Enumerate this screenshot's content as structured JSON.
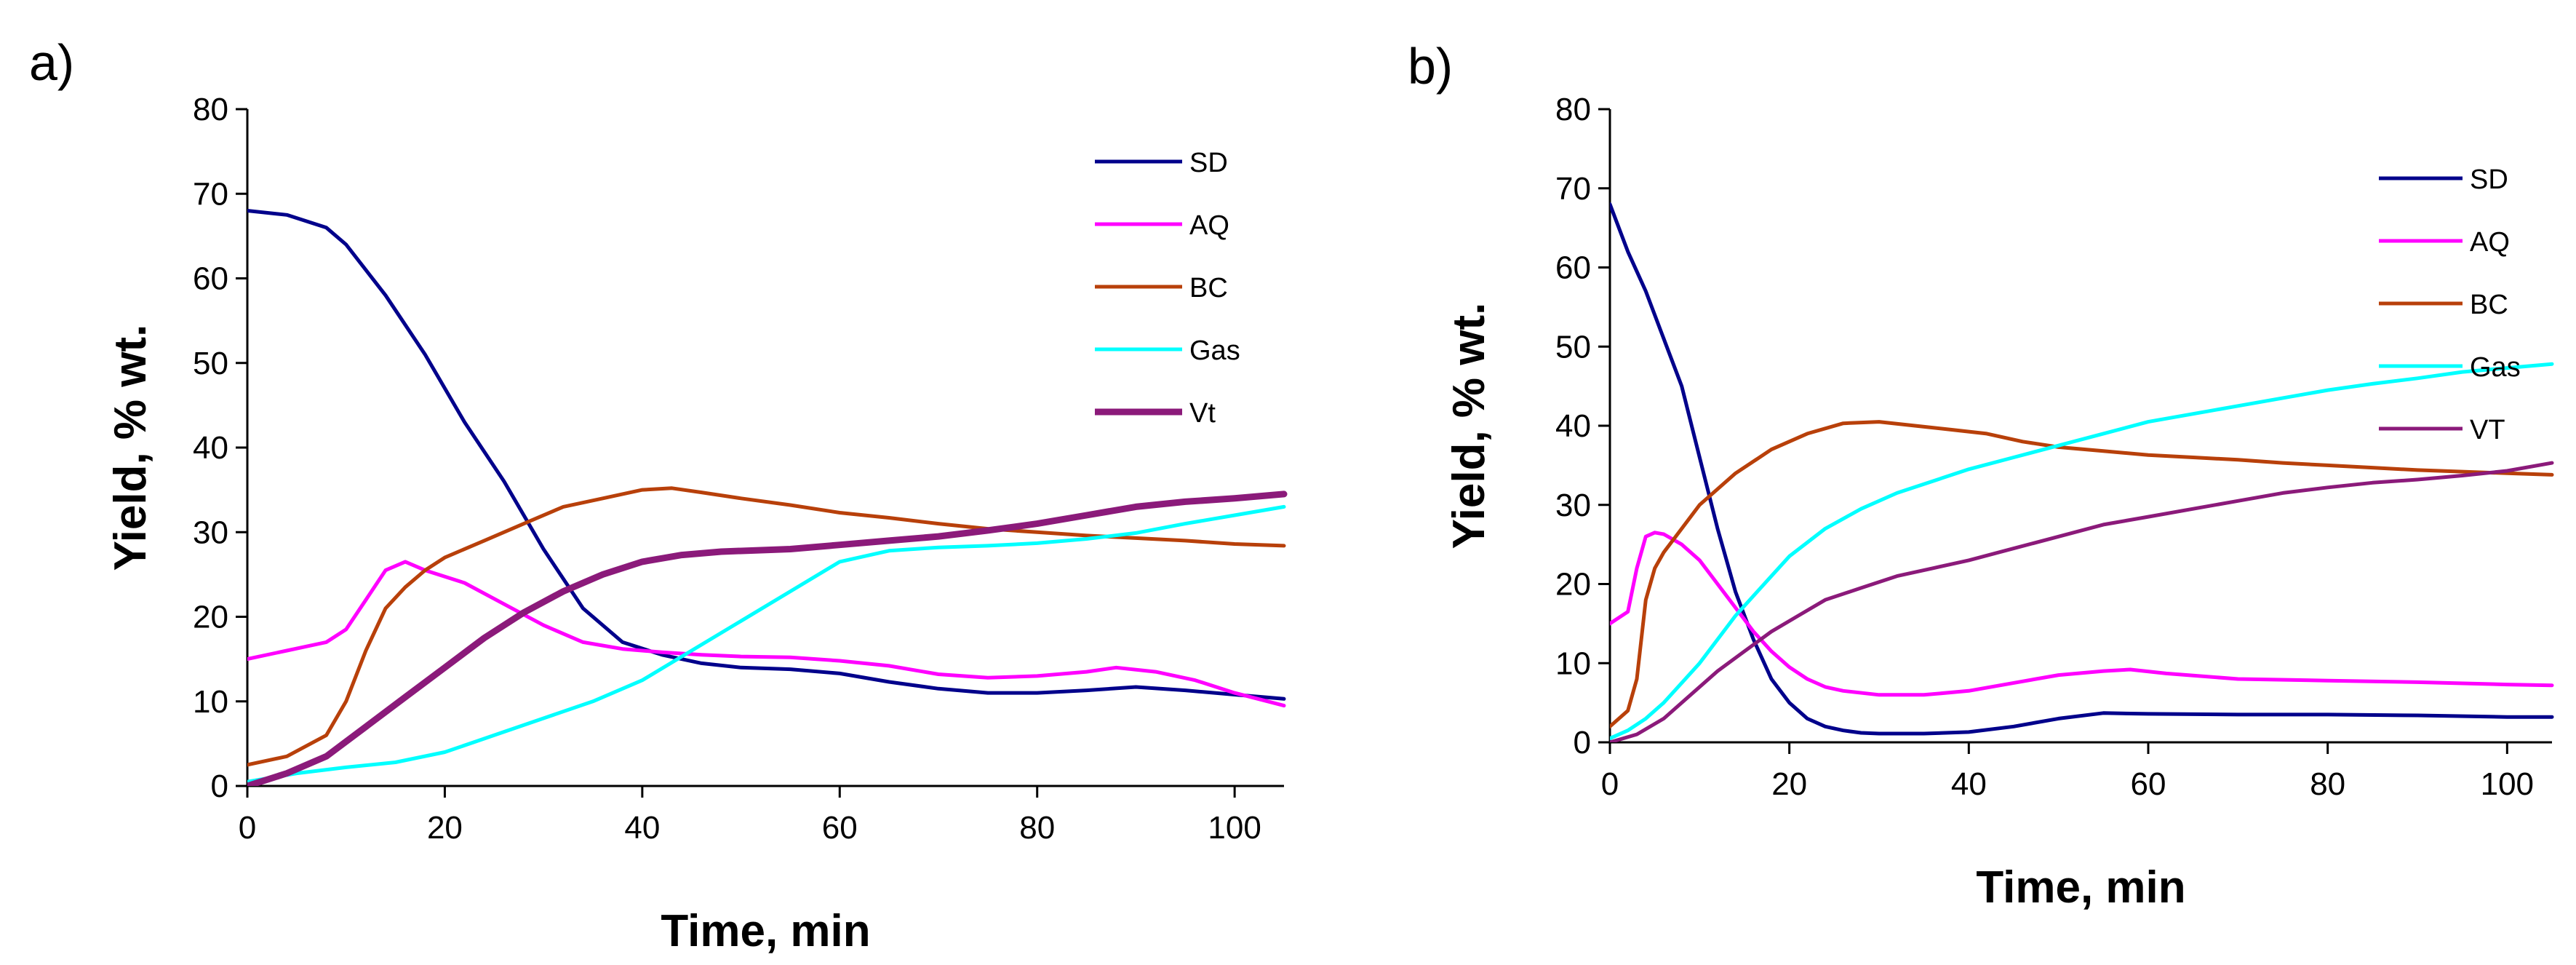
{
  "chart_data": [
    {
      "type": "line",
      "panel_label": "a)",
      "title": "",
      "xlabel": "Time, min",
      "ylabel": "Yield, % wt.",
      "xlim": [
        0,
        105
      ],
      "ylim": [
        0,
        80
      ],
      "xticks": [
        0,
        20,
        40,
        60,
        80,
        100
      ],
      "yticks": [
        0,
        10,
        20,
        30,
        40,
        50,
        60,
        70,
        80
      ],
      "grid": false,
      "legend_position": "top-right",
      "series": [
        {
          "name": "SD",
          "color": "#00008b",
          "width": "normal",
          "x": [
            0,
            4,
            8,
            10,
            14,
            18,
            22,
            26,
            30,
            34,
            38,
            42,
            46,
            50,
            55,
            60,
            65,
            70,
            75,
            80,
            85,
            90,
            95,
            100,
            105
          ],
          "y": [
            68,
            67.5,
            66,
            64,
            58,
            51,
            43,
            36,
            28,
            21,
            17,
            15.5,
            14.5,
            14,
            13.8,
            13.3,
            12.3,
            11.5,
            11,
            11,
            11.3,
            11.7,
            11.3,
            10.8,
            10.3
          ]
        },
        {
          "name": "AQ",
          "color": "#ff00ff",
          "width": "normal",
          "x": [
            0,
            4,
            8,
            10,
            12,
            14,
            16,
            18,
            22,
            26,
            30,
            34,
            38,
            42,
            46,
            50,
            55,
            60,
            65,
            70,
            75,
            80,
            85,
            88,
            92,
            96,
            100,
            105
          ],
          "y": [
            15,
            16,
            17,
            18.5,
            22,
            25.5,
            26.5,
            25.5,
            24,
            21.5,
            19,
            17,
            16.2,
            15.8,
            15.5,
            15.3,
            15.2,
            14.8,
            14.2,
            13.2,
            12.8,
            13,
            13.5,
            14,
            13.5,
            12.5,
            11,
            9.5
          ]
        },
        {
          "name": "BC",
          "color": "#b8400a",
          "width": "normal",
          "x": [
            0,
            4,
            8,
            10,
            12,
            14,
            16,
            18,
            20,
            24,
            28,
            32,
            36,
            40,
            43,
            46,
            50,
            55,
            60,
            65,
            70,
            75,
            80,
            85,
            90,
            95,
            100,
            105
          ],
          "y": [
            2.5,
            3.5,
            6,
            10,
            16,
            21,
            23.5,
            25.5,
            27,
            29,
            31,
            33,
            34,
            35,
            35.2,
            34.7,
            34,
            33.2,
            32.3,
            31.7,
            31,
            30.4,
            30,
            29.6,
            29.3,
            29,
            28.6,
            28.4
          ]
        },
        {
          "name": "Gas",
          "color": "#00ffff",
          "width": "normal",
          "x": [
            0,
            5,
            10,
            15,
            20,
            25,
            30,
            35,
            40,
            45,
            50,
            55,
            60,
            65,
            70,
            75,
            80,
            85,
            90,
            95,
            100,
            105
          ],
          "y": [
            0.5,
            1.5,
            2.2,
            2.8,
            4,
            6,
            8,
            10,
            12.5,
            16,
            19.5,
            23,
            26.5,
            27.8,
            28.2,
            28.4,
            28.7,
            29.2,
            29.9,
            31,
            32,
            33
          ]
        },
        {
          "name": "Vt",
          "color": "#8b1a7a",
          "width": "thick",
          "x": [
            0,
            4,
            8,
            12,
            16,
            20,
            24,
            28,
            32,
            36,
            40,
            44,
            48,
            55,
            60,
            65,
            70,
            75,
            80,
            85,
            90,
            95,
            100,
            105
          ],
          "y": [
            0,
            1.5,
            3.5,
            7,
            10.5,
            14,
            17.5,
            20.5,
            23,
            25,
            26.5,
            27.3,
            27.7,
            28,
            28.5,
            29,
            29.5,
            30.2,
            31,
            32,
            33,
            33.6,
            34,
            34.5
          ]
        }
      ]
    },
    {
      "type": "line",
      "panel_label": "b)",
      "title": "",
      "xlabel": "Time, min",
      "ylabel": "Yield, % wt.",
      "xlim": [
        0,
        105
      ],
      "ylim": [
        0,
        80
      ],
      "xticks": [
        0,
        20,
        40,
        60,
        80,
        100
      ],
      "yticks": [
        0,
        10,
        20,
        30,
        40,
        50,
        60,
        70,
        80
      ],
      "grid": false,
      "legend_position": "top-right",
      "series": [
        {
          "name": "SD",
          "color": "#00008b",
          "width": "normal",
          "x": [
            0,
            2,
            4,
            6,
            8,
            10,
            12,
            14,
            16,
            18,
            20,
            22,
            24,
            26,
            28,
            30,
            35,
            40,
            45,
            50,
            55,
            60,
            70,
            80,
            90,
            100,
            105
          ],
          "y": [
            68,
            62,
            57,
            51,
            45,
            36,
            27,
            19,
            13,
            8,
            5,
            3,
            2,
            1.5,
            1.2,
            1.1,
            1.1,
            1.3,
            2,
            3,
            3.7,
            3.6,
            3.5,
            3.5,
            3.4,
            3.2,
            3.2
          ]
        },
        {
          "name": "AQ",
          "color": "#ff00ff",
          "width": "normal",
          "x": [
            0,
            2,
            3,
            4,
            5,
            6,
            8,
            10,
            12,
            14,
            16,
            18,
            20,
            22,
            24,
            26,
            30,
            35,
            40,
            45,
            50,
            55,
            58,
            62,
            70,
            80,
            90,
            100,
            105
          ],
          "y": [
            15,
            16.5,
            22,
            26,
            26.5,
            26.3,
            25,
            23,
            20,
            17,
            14,
            11.5,
            9.5,
            8,
            7,
            6.5,
            6,
            6,
            6.5,
            7.5,
            8.5,
            9,
            9.2,
            8.7,
            8,
            7.8,
            7.6,
            7.3,
            7.2
          ]
        },
        {
          "name": "BC",
          "color": "#b8400a",
          "width": "normal",
          "x": [
            0,
            2,
            3,
            4,
            5,
            6,
            8,
            10,
            14,
            18,
            22,
            26,
            30,
            34,
            38,
            42,
            46,
            50,
            55,
            60,
            65,
            70,
            75,
            80,
            85,
            90,
            95,
            100,
            105
          ],
          "y": [
            2,
            4,
            8,
            18,
            22,
            24,
            27,
            30,
            34,
            37,
            39,
            40.3,
            40.5,
            40,
            39.5,
            39,
            38,
            37.3,
            36.8,
            36.3,
            36,
            35.7,
            35.3,
            35,
            34.7,
            34.4,
            34.2,
            34,
            33.8
          ]
        },
        {
          "name": "Gas",
          "color": "#00ffff",
          "width": "normal",
          "x": [
            0,
            2,
            4,
            6,
            8,
            10,
            12,
            14,
            16,
            18,
            20,
            24,
            28,
            32,
            36,
            40,
            45,
            50,
            55,
            60,
            65,
            70,
            75,
            80,
            85,
            90,
            95,
            100,
            105
          ],
          "y": [
            0.5,
            1.5,
            3,
            5,
            7.5,
            10,
            13,
            16,
            18.5,
            21,
            23.5,
            27,
            29.5,
            31.5,
            33,
            34.5,
            36,
            37.5,
            39,
            40.5,
            41.5,
            42.5,
            43.5,
            44.5,
            45.3,
            46,
            46.8,
            47.3,
            47.8
          ]
        },
        {
          "name": "VT",
          "color": "#8b1a7a",
          "width": "normal",
          "x": [
            0,
            3,
            6,
            9,
            12,
            15,
            18,
            21,
            24,
            28,
            32,
            36,
            40,
            45,
            50,
            55,
            60,
            65,
            70,
            75,
            80,
            85,
            90,
            95,
            100,
            105
          ],
          "y": [
            0,
            1,
            3,
            6,
            9,
            11.5,
            14,
            16,
            18,
            19.5,
            21,
            22,
            23,
            24.5,
            26,
            27.5,
            28.5,
            29.5,
            30.5,
            31.5,
            32.2,
            32.8,
            33.2,
            33.7,
            34.3,
            35.3
          ]
        }
      ]
    }
  ]
}
